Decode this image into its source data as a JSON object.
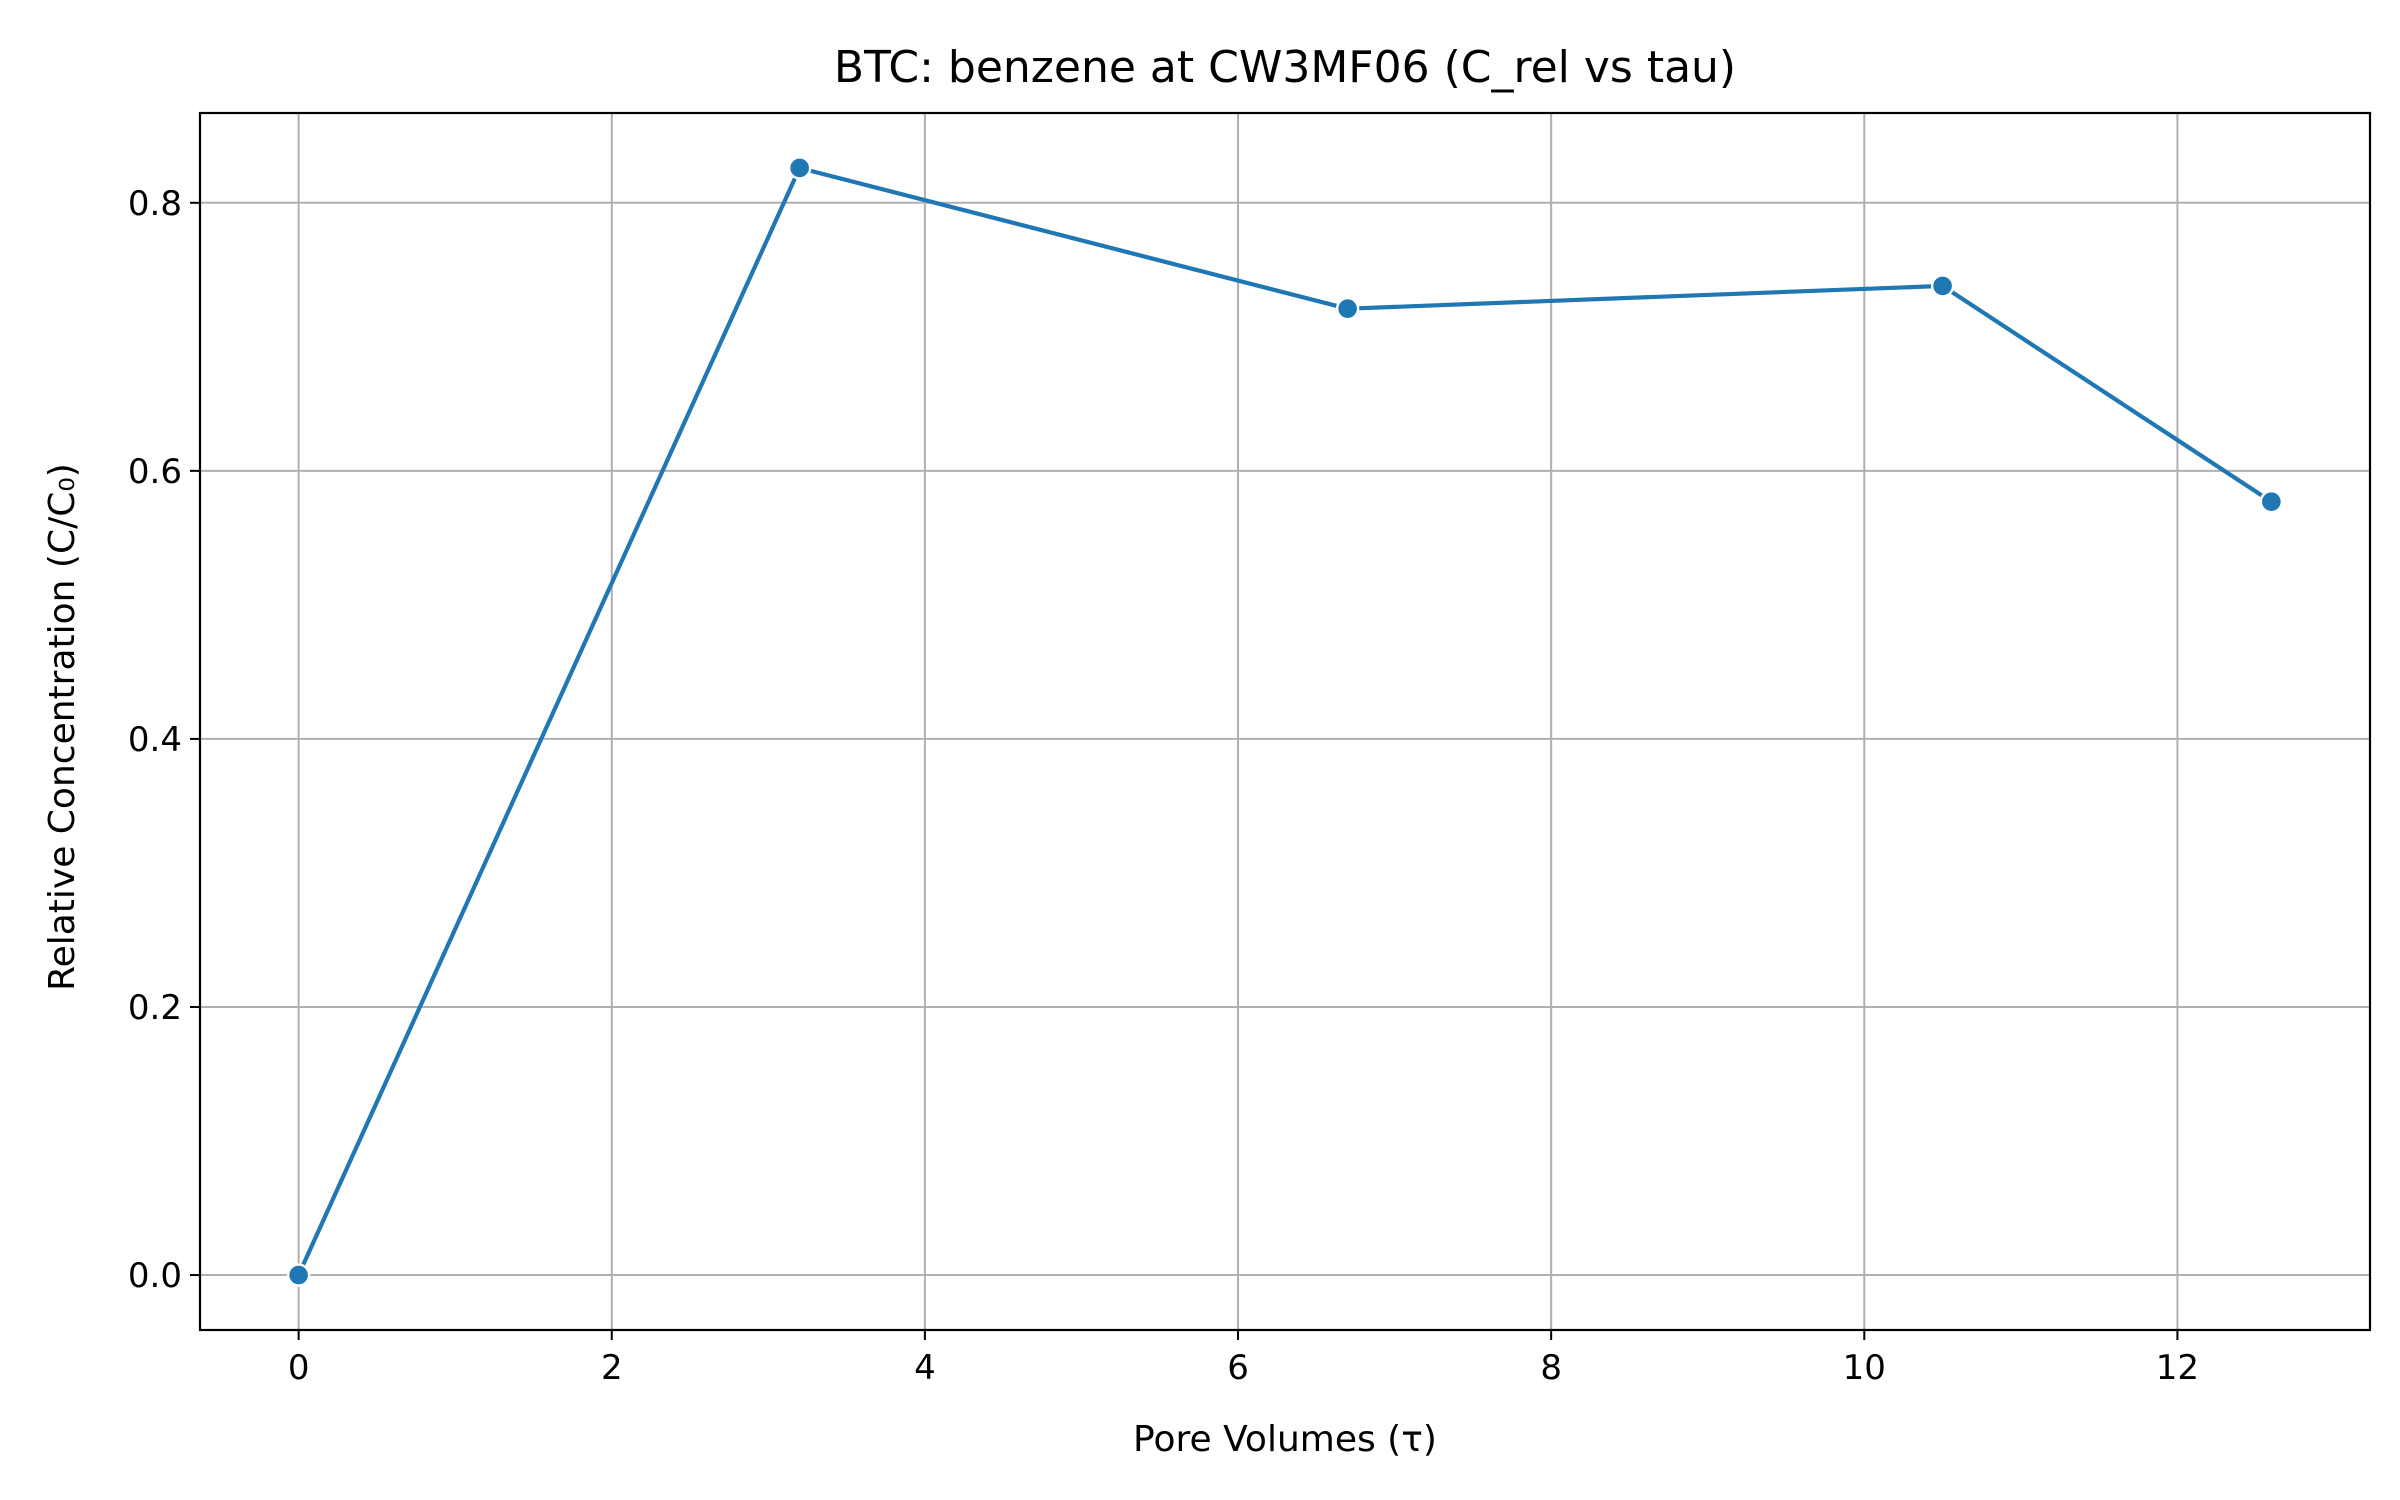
{
  "chart_data": {
    "type": "line",
    "title": "BTC: benzene at CW3MF06 (C_rel vs tau)",
    "xlabel": "Pore Volumes (τ)",
    "ylabel": "Relative Concentration (C/C₀)",
    "xlim": [
      -0.63,
      13.23
    ],
    "ylim": [
      -0.041,
      0.867
    ],
    "xticks": [
      0,
      2,
      4,
      6,
      8,
      10,
      12
    ],
    "xtick_labels": [
      "0",
      "2",
      "4",
      "6",
      "8",
      "10",
      "12"
    ],
    "yticks": [
      0.0,
      0.2,
      0.4,
      0.6,
      0.8
    ],
    "ytick_labels": [
      "0.0",
      "0.2",
      "0.4",
      "0.6",
      "0.8"
    ],
    "grid": true,
    "series": [
      {
        "color": "#1f77b4",
        "x": [
          0.0,
          3.2,
          6.7,
          10.5,
          12.6
        ],
        "y": [
          0.0,
          0.826,
          0.721,
          0.738,
          0.577
        ]
      }
    ]
  }
}
